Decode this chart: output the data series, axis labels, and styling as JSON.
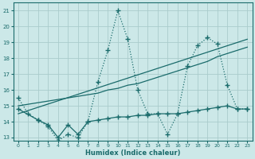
{
  "xlabel": "Humidex (Indice chaleur)",
  "xlim": [
    -0.5,
    23.5
  ],
  "ylim": [
    12.8,
    21.5
  ],
  "yticks": [
    13,
    14,
    15,
    16,
    17,
    18,
    19,
    20,
    21
  ],
  "xticks": [
    0,
    1,
    2,
    3,
    4,
    5,
    6,
    7,
    8,
    9,
    10,
    11,
    12,
    13,
    14,
    15,
    16,
    17,
    18,
    19,
    20,
    21,
    22,
    23
  ],
  "bg_color": "#cce8e8",
  "grid_color": "#aacccc",
  "line_color": "#1a6b6b",
  "line1_x": [
    0,
    1,
    2,
    3,
    4,
    5,
    6,
    7,
    8,
    9,
    10,
    11,
    12,
    13,
    14,
    15,
    16,
    17,
    18,
    19,
    20,
    21,
    22,
    23
  ],
  "line1_y": [
    15.5,
    14.5,
    14.1,
    13.7,
    12.8,
    13.2,
    13.0,
    14.0,
    16.5,
    18.5,
    21.0,
    19.2,
    16.0,
    14.5,
    14.5,
    13.2,
    14.5,
    17.5,
    18.8,
    19.3,
    18.9,
    16.3,
    14.8,
    14.8
  ],
  "line2_x": [
    0,
    2,
    3,
    4,
    5,
    6,
    7,
    8,
    9,
    10,
    11,
    12,
    13,
    14,
    15,
    16,
    17,
    18,
    19,
    20,
    21,
    22,
    23
  ],
  "line2_y": [
    14.8,
    14.1,
    13.8,
    13.0,
    13.8,
    13.2,
    14.0,
    14.1,
    14.2,
    14.3,
    14.3,
    14.4,
    14.4,
    14.5,
    14.5,
    14.5,
    14.6,
    14.7,
    14.8,
    14.9,
    15.0,
    14.8,
    14.8
  ],
  "line3_x": [
    0,
    1,
    2,
    3,
    4,
    5,
    6,
    7,
    8,
    9,
    10,
    11,
    12,
    13,
    14,
    15,
    16,
    17,
    18,
    19,
    20,
    21,
    22,
    23
  ],
  "line3_y": [
    15.0,
    15.1,
    15.2,
    15.3,
    15.4,
    15.5,
    15.6,
    15.7,
    15.8,
    16.0,
    16.1,
    16.3,
    16.4,
    16.6,
    16.8,
    17.0,
    17.2,
    17.4,
    17.6,
    17.8,
    18.1,
    18.3,
    18.5,
    18.7
  ],
  "line4_x": [
    0,
    23
  ],
  "line4_y": [
    14.5,
    19.2
  ]
}
